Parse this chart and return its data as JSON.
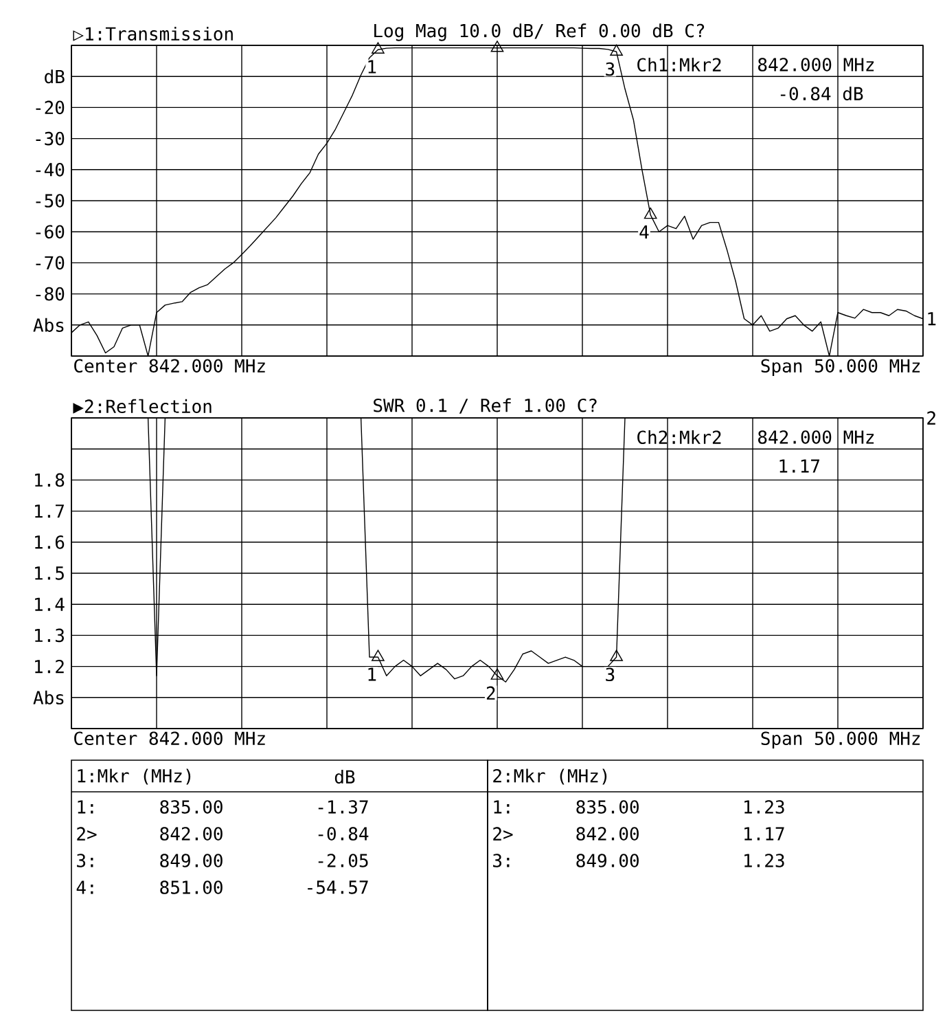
{
  "chart_data": [
    {
      "type": "line",
      "title": "▷1:Transmission",
      "subtitle": "Log Mag 10.0 dB/ Ref 0.00 dB C?",
      "xlabel": "Center 842.000 MHz",
      "categories": [
        null,
        null,
        null,
        null,
        null,
        null,
        null,
        null,
        null,
        null,
        null,
        null,
        null,
        null,
        null,
        null,
        null,
        null,
        null,
        null,
        null,
        null,
        null,
        null,
        null,
        null,
        null,
        null,
        null,
        null,
        null,
        null,
        null,
        null,
        null,
        null,
        null,
        null,
        null,
        null,
        null,
        null,
        null,
        null,
        null,
        null,
        null,
        null,
        null,
        null,
        null,
        null,
        null,
        null,
        null,
        null,
        null,
        null,
        null,
        null,
        null,
        null,
        null,
        null,
        null,
        null,
        null,
        null,
        null,
        null,
        null,
        null,
        null,
        null,
        null,
        null,
        null,
        null,
        null,
        null,
        null,
        null,
        null,
        null,
        null,
        null,
        null,
        null,
        null,
        null,
        null,
        null,
        null,
        null,
        null,
        null,
        null,
        null,
        null,
        null,
        null
      ],
      "ylim": [
        -100,
        0
      ],
      "yticks": [
        {
          "value": 0,
          "label": null
        },
        {
          "value": -10,
          "label": "dB"
        },
        -20,
        -30,
        -40,
        -50,
        -60,
        -70,
        -80,
        {
          "value": -90,
          "label": "Abs"
        },
        {
          "value": -100,
          "label": null
        }
      ],
      "grid": true,
      "series": [
        {
          "color": "#000000",
          "values": [
            -92.5,
            -90,
            -89,
            -93.4,
            -99,
            -97,
            -91,
            -90,
            -90,
            -100,
            -86,
            -83.6,
            -83,
            -82.5,
            -79.5,
            -78,
            -77,
            -74.5,
            -72,
            -70,
            -67.3,
            -64.5,
            -61.5,
            -58.5,
            -55.5,
            -52,
            -48.5,
            -44.5,
            -41,
            -35,
            -31.5,
            -27,
            -21.5,
            -16,
            -9.5,
            -4,
            -1.37,
            -0.9,
            -0.8,
            -0.8,
            -0.8,
            -0.8,
            -0.8,
            -0.8,
            -0.8,
            -0.8,
            -0.8,
            -0.8,
            -0.8,
            -0.8,
            -0.84,
            -0.8,
            -0.8,
            -0.8,
            -0.8,
            -0.8,
            -0.8,
            -0.8,
            -0.8,
            -0.8,
            -0.9,
            -1.0,
            -1.0,
            -1.3,
            -2.05,
            -14,
            -24,
            -40,
            -54.57,
            -60,
            -58,
            -59,
            -55,
            -62.4,
            -58,
            -57,
            -57,
            -66,
            -76,
            -88,
            -90,
            -87,
            -92,
            -91,
            -88,
            -87,
            -90,
            -92,
            -89,
            -100,
            -86,
            -87,
            -87.8,
            -85,
            -86,
            -86,
            -87,
            -85,
            -85.5,
            -87,
            -88
          ]
        },
        {
          "type": "scatter",
          "marker": "triangle",
          "color": "#000000",
          "values": [
            null,
            null,
            null,
            null,
            null,
            null,
            null,
            null,
            null,
            null,
            null,
            null,
            null,
            null,
            null,
            null,
            null,
            null,
            null,
            null,
            null,
            null,
            null,
            null,
            null,
            null,
            null,
            null,
            null,
            null,
            null,
            null,
            null,
            null,
            null,
            null,
            -1.37,
            null,
            null,
            null,
            null,
            null,
            null,
            null,
            null,
            null,
            null,
            null,
            null,
            null,
            -0.84,
            null,
            null,
            null,
            null,
            null,
            null,
            null,
            null,
            null,
            null,
            null,
            null,
            null,
            -2.05,
            null,
            null,
            null,
            -54.57,
            null,
            null,
            null,
            null,
            null,
            null,
            null,
            null,
            null,
            null,
            null,
            null,
            null,
            null,
            null,
            null,
            null,
            null,
            null,
            null,
            null,
            null,
            null,
            null,
            null,
            null,
            null,
            null,
            null,
            null,
            null,
            null
          ]
        }
      ],
      "annotations": [
        "Span 50.000 MHz",
        "Ch1:Mkr2",
        "842.000 MHz",
        "-0.84 dB",
        "1",
        "1:Mkr (MHz)",
        "dB",
        "1:",
        "835.00",
        "-1.37",
        "2>",
        "842.00",
        "-0.84",
        "3:",
        "849.00",
        "-2.05",
        "4:",
        "851.00",
        "-54.57",
        {
          "text": "1",
          "y": -1.37
        },
        {
          "text": "3",
          "y": -2.05
        },
        {
          "text": "4",
          "y": -54.57
        }
      ]
    },
    {
      "type": "line",
      "title": "▶2:Reflection",
      "subtitle": "SWR 0.1 / Ref 1.00 C?",
      "xlabel": "Center 842.000 MHz",
      "categories": [
        null,
        null,
        null,
        null,
        null,
        null,
        null,
        null,
        null,
        null,
        null,
        null,
        null,
        null,
        null,
        null,
        null,
        null,
        null,
        null,
        null,
        null,
        null,
        null,
        null,
        null,
        null,
        null,
        null,
        null,
        null,
        null,
        null,
        null,
        null,
        null,
        null,
        null,
        null,
        null,
        null,
        null,
        null,
        null,
        null,
        null,
        null,
        null,
        null,
        null,
        null,
        null,
        null,
        null,
        null,
        null,
        null,
        null,
        null,
        null,
        null,
        null,
        null,
        null,
        null,
        null,
        null,
        null,
        null,
        null,
        null,
        null,
        null,
        null,
        null,
        null,
        null,
        null,
        null,
        null,
        null,
        null,
        null,
        null,
        null,
        null,
        null,
        null,
        null,
        null,
        null,
        null,
        null,
        null,
        null,
        null,
        null,
        null,
        null,
        null,
        null
      ],
      "ylim": [
        1.0,
        2.0
      ],
      "yticks": [
        {
          "value": 2.0,
          "label": null
        },
        {
          "value": 1.9,
          "label": null
        },
        1.8,
        1.7,
        1.6,
        1.5,
        1.4,
        1.3,
        1.2,
        {
          "value": 1.1,
          "label": "Abs"
        },
        {
          "value": 1.0,
          "label": null
        }
      ],
      "grid": true,
      "series": [
        {
          "color": "#000000",
          "values": [
            2.0,
            2.0,
            2.0,
            2.0,
            2.0,
            2.0,
            2.0,
            2.0,
            2.0,
            2.0,
            1.17,
            2.0,
            2.0,
            2.0,
            2.0,
            2.0,
            2.0,
            2.0,
            2.0,
            2.0,
            2.0,
            2.0,
            2.0,
            2.0,
            2.0,
            2.0,
            2.0,
            2.0,
            2.0,
            2.0,
            2.0,
            2.0,
            2.0,
            2.0,
            2.0,
            1.23,
            1.23,
            1.17,
            1.2,
            1.22,
            1.2,
            1.17,
            1.19,
            1.21,
            1.19,
            1.16,
            1.17,
            1.2,
            1.22,
            1.2,
            1.17,
            1.15,
            1.19,
            1.24,
            1.25,
            1.23,
            1.21,
            1.22,
            1.23,
            1.22,
            1.2,
            1.2,
            1.2,
            1.2,
            1.23,
            2.0,
            2.0,
            2.0,
            2.0,
            2.0,
            2.0,
            2.0,
            2.0,
            2.0,
            2.0,
            2.0,
            2.0,
            2.0,
            2.0,
            2.0,
            2.0,
            2.0,
            2.0,
            2.0,
            2.0,
            2.0,
            2.0,
            2.0,
            2.0,
            2.0,
            2.0,
            2.0,
            2.0,
            2.0,
            2.0,
            2.0,
            2.0,
            2.0,
            2.0,
            2.0,
            2.0
          ]
        },
        {
          "type": "scatter",
          "marker": "triangle",
          "color": "#000000",
          "values": [
            null,
            null,
            null,
            null,
            null,
            null,
            null,
            null,
            null,
            null,
            null,
            null,
            null,
            null,
            null,
            null,
            null,
            null,
            null,
            null,
            null,
            null,
            null,
            null,
            null,
            null,
            null,
            null,
            null,
            null,
            null,
            null,
            null,
            null,
            null,
            null,
            1.23,
            null,
            null,
            null,
            null,
            null,
            null,
            null,
            null,
            null,
            null,
            null,
            null,
            null,
            1.17,
            null,
            null,
            null,
            null,
            null,
            null,
            null,
            null,
            null,
            null,
            null,
            null,
            null,
            1.23,
            null,
            null,
            null,
            null,
            null,
            null,
            null,
            null,
            null,
            null,
            null,
            null,
            null,
            null,
            null,
            null,
            null,
            null,
            null,
            null,
            null,
            null,
            null,
            null,
            null,
            null,
            null,
            null,
            null,
            null,
            null,
            null,
            null,
            null,
            null,
            null
          ]
        }
      ],
      "annotations": [
        "Span 50.000 MHz",
        "Ch2:Mkr2",
        "842.000 MHz",
        "1.17",
        "2",
        "2:Mkr (MHz)",
        "1:",
        "835.00",
        "1.23",
        "2>",
        "842.00",
        "1.17",
        "3:",
        "849.00",
        "1.23",
        {
          "text": "1",
          "y": 1.23
        },
        {
          "text": "2",
          "y": 1.17
        },
        {
          "text": "3",
          "y": 1.23
        }
      ]
    }
  ]
}
